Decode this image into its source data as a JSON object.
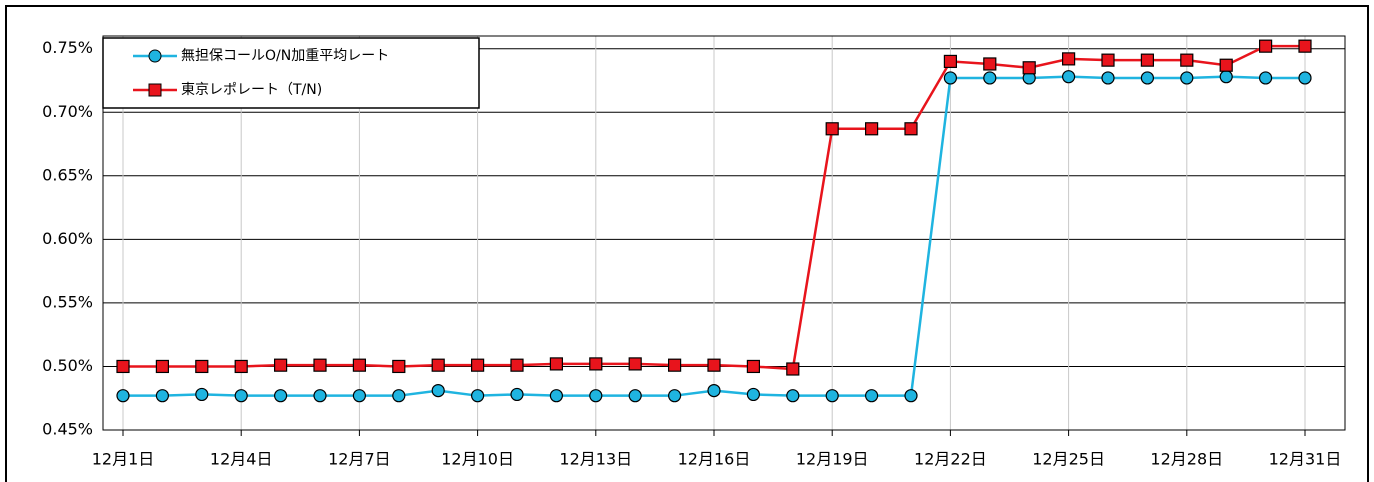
{
  "chart_data": {
    "type": "line",
    "categories": [
      "12月1日",
      null,
      null,
      "12月4日",
      null,
      null,
      "12月7日",
      null,
      null,
      "12月10日",
      null,
      null,
      "12月13日",
      null,
      null,
      "12月16日",
      null,
      null,
      "12月19日",
      null,
      null,
      "12月22日",
      null,
      null,
      "12月25日",
      null,
      null,
      "12月28日",
      null,
      null,
      "12月31日"
    ],
    "series": [
      {
        "name": "無担保コールO/N加重平均レート",
        "color": "#1fb4e0",
        "marker": "circle",
        "values": [
          0.477,
          0.477,
          0.478,
          0.477,
          0.477,
          0.477,
          0.477,
          0.477,
          0.481,
          0.477,
          0.478,
          0.477,
          0.477,
          0.477,
          0.477,
          0.481,
          0.478,
          0.477,
          0.477,
          0.477,
          0.477,
          0.727,
          0.727,
          0.727,
          0.728,
          0.727,
          0.727,
          0.727,
          0.728,
          0.727,
          0.727
        ]
      },
      {
        "name": "東京レポレート（T/N)",
        "color": "#e8141c",
        "marker": "square",
        "values": [
          0.5,
          0.5,
          0.5,
          0.5,
          0.501,
          0.501,
          0.501,
          0.5,
          0.501,
          0.501,
          0.501,
          0.502,
          0.502,
          0.502,
          0.501,
          0.501,
          0.5,
          0.498,
          0.687,
          0.687,
          0.687,
          0.74,
          0.738,
          0.735,
          0.742,
          0.741,
          0.741,
          0.741,
          0.737,
          0.752,
          0.752
        ]
      }
    ],
    "ylim": [
      0.45,
      0.76
    ],
    "yticks": [
      {
        "value": 0.45,
        "label": "0.45%"
      },
      {
        "value": 0.5,
        "label": "0.50%"
      },
      {
        "value": 0.55,
        "label": "0.55%"
      },
      {
        "value": 0.6,
        "label": "0.60%"
      },
      {
        "value": 0.65,
        "label": "0.65%"
      },
      {
        "value": 0.7,
        "label": "0.70%"
      },
      {
        "value": 0.75,
        "label": "0.75%"
      }
    ],
    "grid": true,
    "legend": "top-left"
  }
}
